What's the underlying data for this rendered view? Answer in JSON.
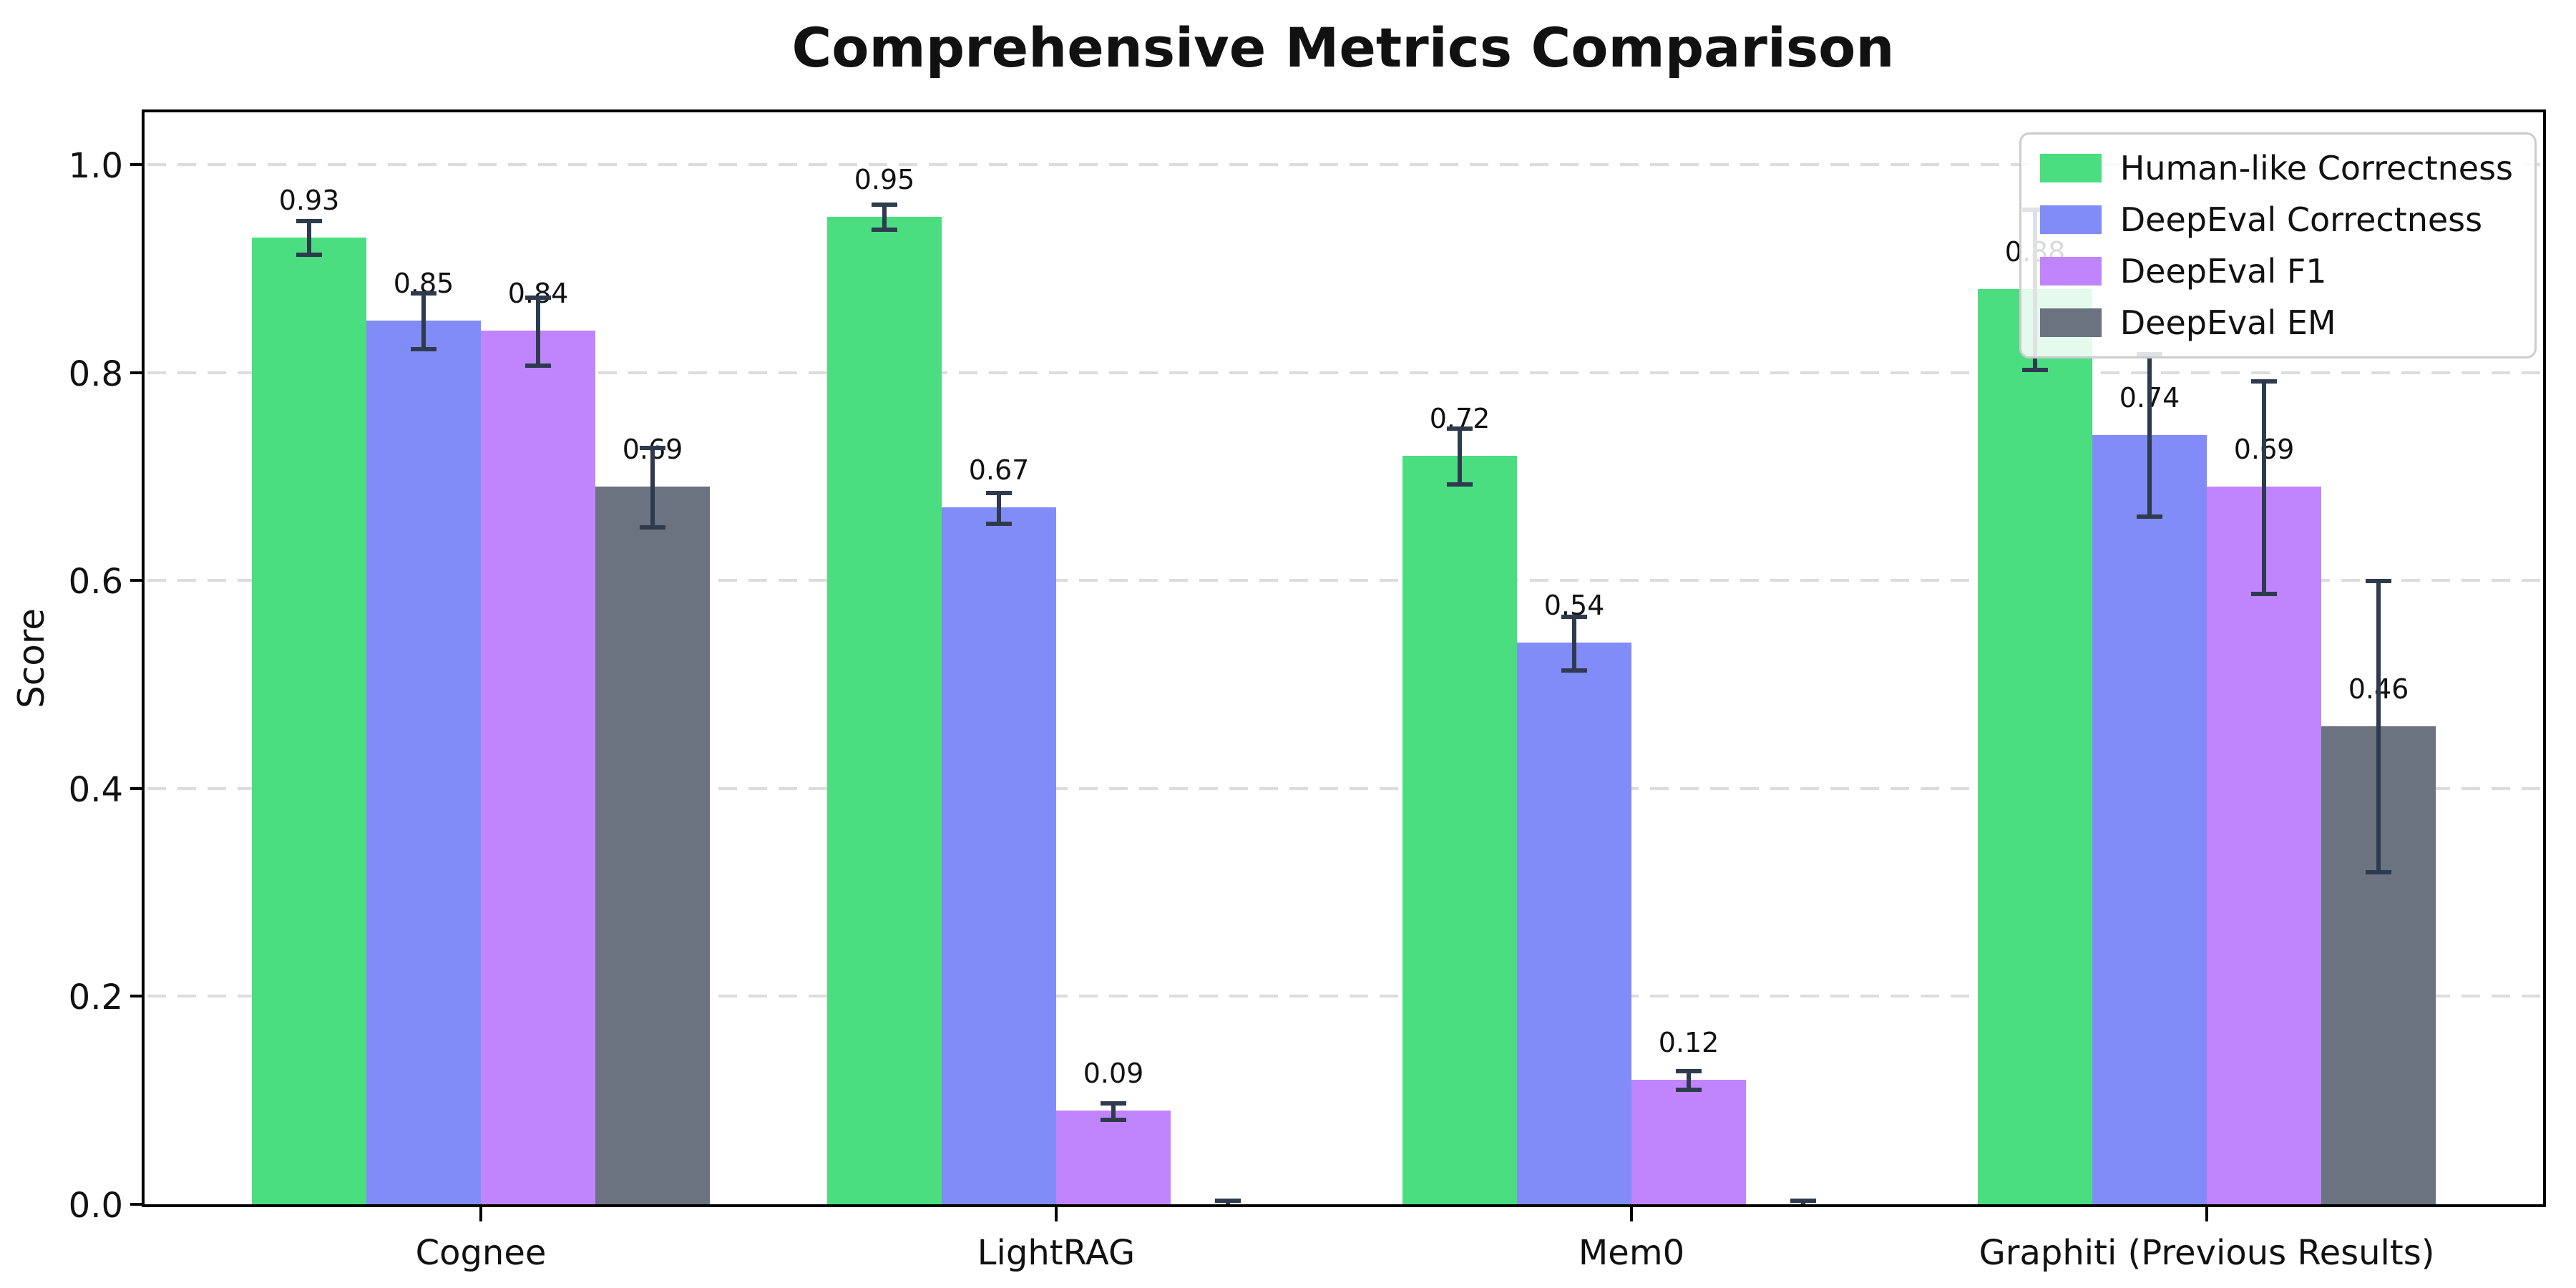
{
  "title": "Comprehensive Metrics Comparison",
  "chart_data": {
    "type": "bar",
    "title": "Comprehensive Metrics Comparison",
    "xlabel": "",
    "ylabel": "Score",
    "categories": [
      "Cognee",
      "LightRAG",
      "Mem0",
      "Graphiti (Previous Results)"
    ],
    "series": [
      {
        "name": "Human-like Correctness",
        "color": "#4ade80",
        "values": [
          0.93,
          0.95,
          0.72,
          0.88
        ],
        "errors": [
          0.016,
          0.012,
          0.027,
          0.077
        ],
        "labels": [
          "0.93",
          "0.95",
          "0.72",
          "0.88"
        ]
      },
      {
        "name": "DeepEval Correctness",
        "color": "#818cf8",
        "values": [
          0.85,
          0.67,
          0.54,
          0.74
        ],
        "errors": [
          0.027,
          0.015,
          0.026,
          0.078
        ],
        "labels": [
          "0.85",
          "0.67",
          "0.54",
          "0.74"
        ]
      },
      {
        "name": "DeepEval F1",
        "color": "#c084fc",
        "values": [
          0.84,
          0.09,
          0.12,
          0.69
        ],
        "errors": [
          0.033,
          0.008,
          0.009,
          0.102
        ],
        "labels": [
          "0.84",
          "0.09",
          "0.12",
          "0.69"
        ]
      },
      {
        "name": "DeepEval EM",
        "color": "#6b7280",
        "values": [
          0.69,
          0.0,
          0.0,
          0.46
        ],
        "errors": [
          0.038,
          0.004,
          0.004,
          0.14
        ],
        "labels": [
          "0.69",
          "",
          "",
          "0.46"
        ]
      }
    ],
    "ylim": [
      0.0,
      1.05
    ],
    "yticks": [
      "0.0",
      "0.2",
      "0.4",
      "0.6",
      "0.8",
      "1.0"
    ],
    "grid": "horizontal-dashed",
    "grid_color": "#dcdcdc",
    "error_bar_color": "#2e3b4e",
    "legend_position": "upper right"
  }
}
